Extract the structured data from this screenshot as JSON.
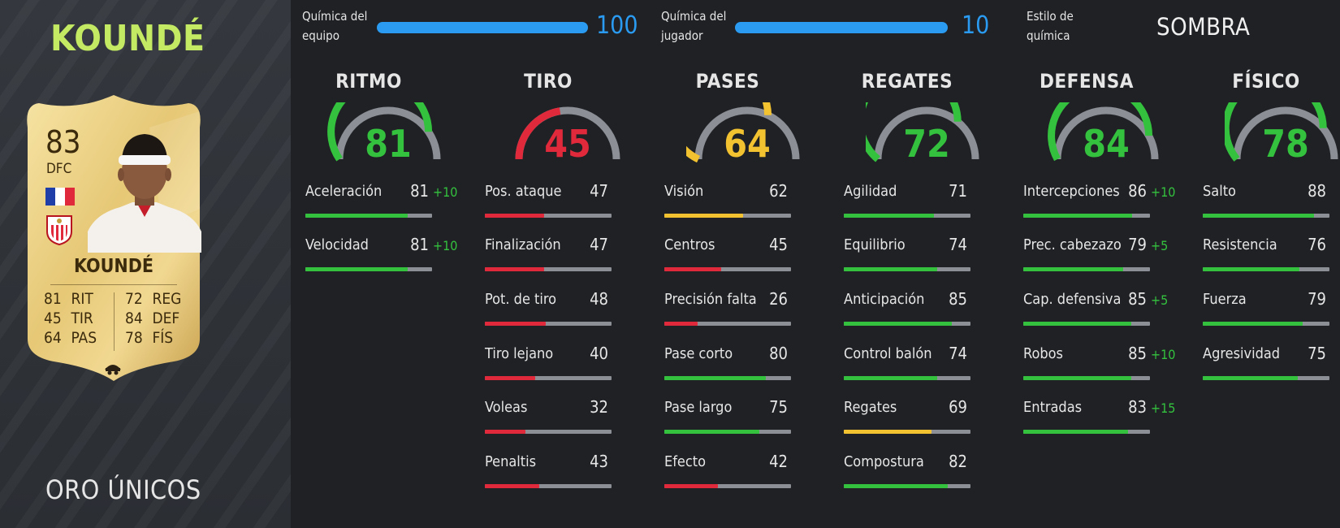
{
  "player": {
    "name": "KOUNDÉ",
    "card_name": "KOUNDÉ",
    "rating": "83",
    "position": "DFC",
    "card_type": "ORO ÚNICOS",
    "card_stats": [
      {
        "value": "81",
        "label": "RIT"
      },
      {
        "value": "45",
        "label": "TIR"
      },
      {
        "value": "64",
        "label": "PAS"
      },
      {
        "value": "72",
        "label": "REG"
      },
      {
        "value": "84",
        "label": "DEF"
      },
      {
        "value": "78",
        "label": "FÍS"
      }
    ]
  },
  "chemistry": {
    "team": {
      "label_1": "Química del",
      "label_2": "equipo",
      "value": "100",
      "fraction": 1.0
    },
    "player": {
      "label_1": "Química del",
      "label_2": "jugador",
      "value": "10",
      "fraction": 1.0
    },
    "style": {
      "label_1": "Estilo de",
      "label_2": "química",
      "value": "SOMBRA"
    }
  },
  "colors": {
    "green": "#34c23e",
    "red": "#e02a3b",
    "yellow": "#f2c230",
    "blue": "#2a9bf0",
    "gray": "#8c9096",
    "accent_name": "#c3ea62"
  },
  "categories": [
    {
      "title": "RITMO",
      "value": "81",
      "color": "green",
      "stats": [
        {
          "label": "Aceleración",
          "value": "81",
          "bonus": "+10"
        },
        {
          "label": "Velocidad",
          "value": "81",
          "bonus": "+10"
        }
      ]
    },
    {
      "title": "TIRO",
      "value": "45",
      "color": "red",
      "stats": [
        {
          "label": "Pos. ataque",
          "value": "47",
          "bonus": ""
        },
        {
          "label": "Finalización",
          "value": "47",
          "bonus": ""
        },
        {
          "label": "Pot. de tiro",
          "value": "48",
          "bonus": ""
        },
        {
          "label": "Tiro lejano",
          "value": "40",
          "bonus": ""
        },
        {
          "label": "Voleas",
          "value": "32",
          "bonus": ""
        },
        {
          "label": "Penaltis",
          "value": "43",
          "bonus": ""
        }
      ]
    },
    {
      "title": "PASES",
      "value": "64",
      "color": "yellow",
      "stats": [
        {
          "label": "Visión",
          "value": "62",
          "bonus": ""
        },
        {
          "label": "Centros",
          "value": "45",
          "bonus": ""
        },
        {
          "label": "Precisión falta",
          "value": "26",
          "bonus": ""
        },
        {
          "label": "Pase corto",
          "value": "80",
          "bonus": ""
        },
        {
          "label": "Pase largo",
          "value": "75",
          "bonus": ""
        },
        {
          "label": "Efecto",
          "value": "42",
          "bonus": ""
        }
      ]
    },
    {
      "title": "REGATES",
      "value": "72",
      "color": "green",
      "stats": [
        {
          "label": "Agilidad",
          "value": "71",
          "bonus": ""
        },
        {
          "label": "Equilibrio",
          "value": "74",
          "bonus": ""
        },
        {
          "label": "Anticipación",
          "value": "85",
          "bonus": ""
        },
        {
          "label": "Control balón",
          "value": "74",
          "bonus": ""
        },
        {
          "label": "Regates",
          "value": "69",
          "bonus": ""
        },
        {
          "label": "Compostura",
          "value": "82",
          "bonus": ""
        }
      ]
    },
    {
      "title": "DEFENSA",
      "value": "84",
      "color": "green",
      "stats": [
        {
          "label": "Intercepciones",
          "value": "86",
          "bonus": "+10"
        },
        {
          "label": "Prec. cabezazo",
          "value": "79",
          "bonus": "+5"
        },
        {
          "label": "Cap. defensiva",
          "value": "85",
          "bonus": "+5"
        },
        {
          "label": "Robos",
          "value": "85",
          "bonus": "+10"
        },
        {
          "label": "Entradas",
          "value": "83",
          "bonus": "+15"
        }
      ]
    },
    {
      "title": "FÍSICO",
      "value": "78",
      "color": "green",
      "stats": [
        {
          "label": "Salto",
          "value": "88",
          "bonus": ""
        },
        {
          "label": "Resistencia",
          "value": "76",
          "bonus": ""
        },
        {
          "label": "Fuerza",
          "value": "79",
          "bonus": ""
        },
        {
          "label": "Agresividad",
          "value": "75",
          "bonus": ""
        }
      ]
    }
  ]
}
